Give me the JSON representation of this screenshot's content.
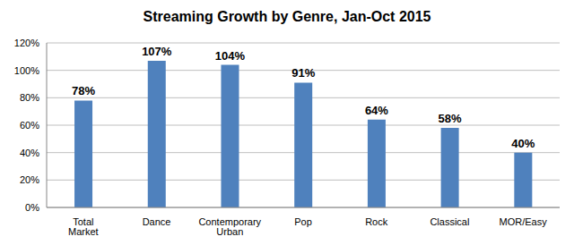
{
  "chart_data": {
    "type": "bar",
    "title": "Streaming Growth by Genre, Jan-Oct 2015",
    "categories": [
      "Total Market",
      "Dance",
      "Contemporary Urban",
      "Pop",
      "Rock",
      "Classical",
      "MOR/Easy"
    ],
    "values": [
      78,
      107,
      104,
      91,
      64,
      58,
      40
    ],
    "value_labels": [
      "78%",
      "107%",
      "104%",
      "91%",
      "64%",
      "58%",
      "40%"
    ],
    "color": "#4f81bd",
    "ylim": [
      0,
      120
    ],
    "yticks": [
      {
        "value": 0,
        "label": "0%"
      },
      {
        "value": 20,
        "label": "20%"
      },
      {
        "value": 40,
        "label": "40%"
      },
      {
        "value": 60,
        "label": "60%"
      },
      {
        "value": 80,
        "label": "80%"
      },
      {
        "value": 100,
        "label": "100%"
      },
      {
        "value": 120,
        "label": "120%"
      }
    ],
    "grid": true,
    "data_labels": true
  }
}
